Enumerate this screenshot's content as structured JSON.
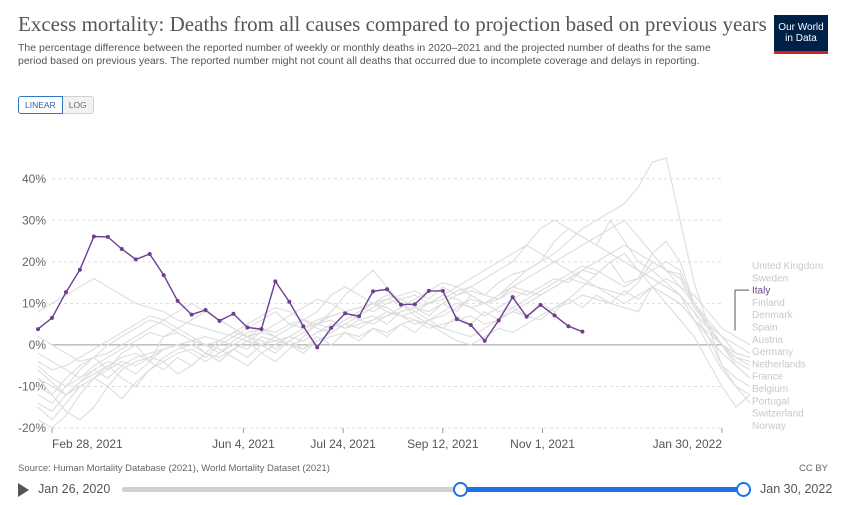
{
  "header": {
    "title": "Excess mortality: Deaths from all causes compared to projection based on previous years",
    "subtitle": "The percentage difference between the reported number of weekly or monthly deaths in 2020–2021 and the projected number of deaths for the same period based on previous years. The reported number might not count all deaths that occurred due to incomplete coverage and delays in reporting.",
    "logo_line1": "Our World",
    "logo_line2": "in Data"
  },
  "controls": {
    "linear_label": "LINEAR",
    "log_label": "LOG"
  },
  "footer": {
    "source": "Source: Human Mortality Database (2021), World Mortality Dataset (2021)",
    "license": "CC BY"
  },
  "timeline": {
    "start_label": "Jan 26, 2020",
    "end_label": "Jan 30, 2022"
  },
  "colors": {
    "highlight": "#6d3e91",
    "background_series": "#dddddd",
    "grid": "#dddddd",
    "zero_line": "#9a9a9a"
  },
  "chart_data": {
    "type": "line",
    "title": "Excess mortality: Deaths from all causes compared to projection based on previous years",
    "ylabel": "",
    "xlabel": "",
    "unit": "%",
    "ylim": [
      -20,
      45
    ],
    "yticks": [
      -20,
      -10,
      0,
      10,
      20,
      30,
      40
    ],
    "ytick_labels": [
      "-20%",
      "-10%",
      "0%",
      "10%",
      "20%",
      "30%",
      "40%"
    ],
    "x_range_days": [
      0,
      336
    ],
    "xticks": [
      {
        "day": 0,
        "label": "Feb 28, 2021"
      },
      {
        "day": 96,
        "label": "Jun 4, 2021"
      },
      {
        "day": 146,
        "label": "Jul 24, 2021"
      },
      {
        "day": 196,
        "label": "Sep 12, 2021"
      },
      {
        "day": 246,
        "label": "Nov 1, 2021"
      },
      {
        "day": 336,
        "label": "Jan 30, 2022"
      }
    ],
    "highlighted": "Italy",
    "legend": [
      "United Kingdom",
      "Sweden",
      "Italy",
      "Finland",
      "Denmark",
      "Spain",
      "Austria",
      "Germany",
      "Netherlands",
      "France",
      "Belgium",
      "Portugal",
      "Switzerland",
      "Norway"
    ],
    "series": [
      {
        "name": "Italy",
        "start_day": -7,
        "step_days": 7,
        "values": [
          3.8,
          6.5,
          12.7,
          18.1,
          26.1,
          26.0,
          23.1,
          20.6,
          21.9,
          16.8,
          10.6,
          7.3,
          8.4,
          5.8,
          7.5,
          4.2,
          3.8,
          15.3,
          10.4,
          4.5,
          -0.6,
          4.1,
          7.6,
          6.9,
          12.9,
          13.4,
          9.7,
          9.8,
          13.0,
          13.0,
          6.2,
          4.8,
          1.0,
          5.9,
          11.5,
          6.8,
          9.6,
          7.1,
          4.5,
          3.2
        ]
      },
      {
        "name": "United Kingdom",
        "start_day": -7,
        "step_days": 7,
        "values": [
          -8,
          -12,
          -16,
          -18,
          -15,
          -10,
          -6,
          -4,
          -3,
          -4,
          -2,
          -1,
          -3,
          0,
          2,
          4,
          6,
          8,
          5,
          4,
          6,
          7,
          8,
          9,
          10,
          11,
          12,
          13,
          11,
          14,
          12,
          13,
          12,
          11,
          14,
          13,
          12,
          14,
          16,
          15,
          14,
          13,
          12,
          15,
          20,
          18,
          17,
          9,
          5,
          2,
          -2,
          -3
        ]
      },
      {
        "name": "Sweden",
        "start_day": -7,
        "step_days": 7,
        "values": [
          -6,
          -9,
          -12,
          -10,
          -8,
          -5,
          -3,
          -2,
          -4,
          -1,
          0,
          1,
          -2,
          1,
          0,
          -1,
          2,
          1,
          0,
          -1,
          1,
          2,
          3,
          2,
          4,
          3,
          5,
          6,
          4,
          5,
          6,
          7,
          5,
          6,
          8,
          7,
          6,
          9,
          10,
          12,
          11,
          10,
          9,
          8,
          14,
          12,
          10,
          6,
          3,
          0,
          -3,
          -4
        ]
      },
      {
        "name": "Finland",
        "start_day": -7,
        "step_days": 7,
        "values": [
          -10,
          -12,
          -8,
          -5,
          -3,
          -6,
          -2,
          0,
          -4,
          2,
          3,
          1,
          0,
          -2,
          1,
          3,
          4,
          2,
          0,
          1,
          3,
          5,
          4,
          6,
          7,
          5,
          8,
          9,
          7,
          10,
          8,
          12,
          10,
          11,
          13,
          12,
          14,
          16,
          15,
          18,
          17,
          20,
          15,
          16,
          22,
          25,
          20,
          10,
          5,
          0,
          -5,
          -8
        ]
      },
      {
        "name": "Denmark",
        "start_day": -7,
        "step_days": 7,
        "values": [
          -12,
          -14,
          -10,
          -8,
          -6,
          -4,
          -5,
          -3,
          -2,
          -1,
          0,
          1,
          2,
          1,
          3,
          2,
          4,
          3,
          5,
          6,
          5,
          7,
          8,
          9,
          8,
          10,
          11,
          12,
          10,
          11,
          13,
          14,
          12,
          15,
          17,
          18,
          20,
          22,
          25,
          28,
          30,
          32,
          34,
          38,
          44,
          45,
          30,
          15,
          5,
          -5,
          -8,
          -10
        ]
      },
      {
        "name": "Spain",
        "start_day": -7,
        "step_days": 7,
        "values": [
          8,
          10,
          12,
          14,
          16,
          14,
          12,
          10,
          9,
          8,
          6,
          5,
          4,
          3,
          2,
          1,
          0,
          2,
          4,
          6,
          8,
          12,
          14,
          12,
          10,
          8,
          7,
          6,
          5,
          4,
          3,
          2,
          4,
          6,
          8,
          10,
          12,
          14,
          16,
          18,
          20,
          22,
          24,
          22,
          20,
          18,
          16,
          10,
          5,
          0,
          -2,
          -3
        ]
      },
      {
        "name": "Austria",
        "start_day": -7,
        "step_days": 7,
        "values": [
          -5,
          -8,
          -10,
          -6,
          -3,
          0,
          2,
          4,
          6,
          5,
          3,
          1,
          0,
          -1,
          -3,
          -5,
          -2,
          0,
          2,
          1,
          3,
          4,
          6,
          8,
          10,
          12,
          11,
          9,
          8,
          10,
          12,
          14,
          16,
          18,
          20,
          24,
          28,
          30,
          28,
          26,
          24,
          30,
          25,
          20,
          18,
          15,
          12,
          8,
          4,
          0,
          -4,
          -6
        ]
      },
      {
        "name": "Germany",
        "start_day": -7,
        "step_days": 7,
        "values": [
          2,
          0,
          -2,
          -4,
          -3,
          -2,
          0,
          2,
          4,
          6,
          8,
          10,
          8,
          6,
          4,
          2,
          0,
          1,
          2,
          4,
          5,
          6,
          4,
          5,
          6,
          7,
          8,
          9,
          10,
          12,
          14,
          16,
          18,
          20,
          22,
          24,
          22,
          20,
          18,
          16,
          14,
          12,
          10,
          12,
          14,
          16,
          14,
          12,
          8,
          4,
          2,
          0
        ]
      },
      {
        "name": "Netherlands",
        "start_day": -7,
        "step_days": 7,
        "values": [
          -2,
          -4,
          -6,
          -8,
          -5,
          -3,
          -1,
          1,
          3,
          2,
          4,
          6,
          8,
          6,
          4,
          2,
          3,
          5,
          7,
          9,
          11,
          10,
          8,
          6,
          5,
          7,
          9,
          11,
          13,
          15,
          14,
          12,
          10,
          12,
          14,
          16,
          18,
          20,
          22,
          24,
          26,
          28,
          30,
          26,
          22,
          18,
          14,
          10,
          6,
          2,
          0,
          -2
        ]
      },
      {
        "name": "France",
        "start_day": -7,
        "step_days": 7,
        "values": [
          -4,
          -6,
          -5,
          -3,
          -1,
          1,
          3,
          5,
          7,
          6,
          4,
          2,
          0,
          1,
          3,
          5,
          7,
          9,
          8,
          6,
          4,
          3,
          5,
          7,
          9,
          11,
          10,
          8,
          6,
          7,
          9,
          11,
          10,
          8,
          9,
          11,
          13,
          15,
          17,
          19,
          18,
          16,
          14,
          16,
          18,
          20,
          18,
          10,
          4,
          0,
          -3,
          -5
        ]
      },
      {
        "name": "Belgium",
        "start_day": -7,
        "step_days": 7,
        "values": [
          -14,
          -16,
          -12,
          -9,
          -7,
          -5,
          -8,
          -10,
          -6,
          -3,
          -1,
          0,
          -2,
          -4,
          -1,
          1,
          3,
          2,
          0,
          -2,
          1,
          3,
          5,
          4,
          6,
          8,
          7,
          5,
          6,
          8,
          10,
          9,
          7,
          9,
          11,
          13,
          12,
          14,
          16,
          18,
          20,
          22,
          20,
          18,
          16,
          14,
          12,
          8,
          2,
          -5,
          -10,
          -12
        ]
      },
      {
        "name": "Portugal",
        "start_day": -7,
        "step_days": 7,
        "values": [
          -18,
          -20,
          -17,
          -12,
          -8,
          -10,
          -13,
          -9,
          -6,
          -4,
          -7,
          -5,
          -2,
          -3,
          -1,
          1,
          -2,
          -4,
          -1,
          2,
          5,
          8,
          12,
          15,
          18,
          14,
          10,
          7,
          5,
          3,
          1,
          0,
          2,
          4,
          3,
          5,
          7,
          9,
          11,
          14,
          17,
          20,
          22,
          18,
          14,
          10,
          6,
          2,
          -4,
          -10,
          -15,
          -12
        ]
      },
      {
        "name": "Switzerland",
        "start_day": -7,
        "step_days": 7,
        "values": [
          -15,
          -18,
          -14,
          -10,
          -8,
          -6,
          -4,
          -5,
          -3,
          -1,
          0,
          -2,
          -4,
          -2,
          0,
          2,
          1,
          -1,
          1,
          3,
          5,
          4,
          6,
          8,
          10,
          9,
          7,
          8,
          10,
          12,
          11,
          9,
          10,
          12,
          15,
          18,
          20,
          25,
          28,
          26,
          24,
          22,
          20,
          18,
          16,
          14,
          12,
          6,
          0,
          -6,
          -10,
          -14
        ]
      },
      {
        "name": "Norway",
        "start_day": -7,
        "step_days": 7,
        "values": [
          -8,
          -10,
          -12,
          -9,
          -6,
          -8,
          -5,
          -7,
          -4,
          -6,
          -3,
          -5,
          -2,
          -4,
          -1,
          -3,
          0,
          -2,
          1,
          -1,
          2,
          0,
          3,
          1,
          4,
          2,
          5,
          3,
          6,
          4,
          7,
          5,
          8,
          6,
          9,
          7,
          10,
          8,
          11,
          9,
          12,
          10,
          13,
          11,
          14,
          12,
          10,
          6,
          2,
          -2,
          -5,
          -8
        ]
      }
    ]
  }
}
